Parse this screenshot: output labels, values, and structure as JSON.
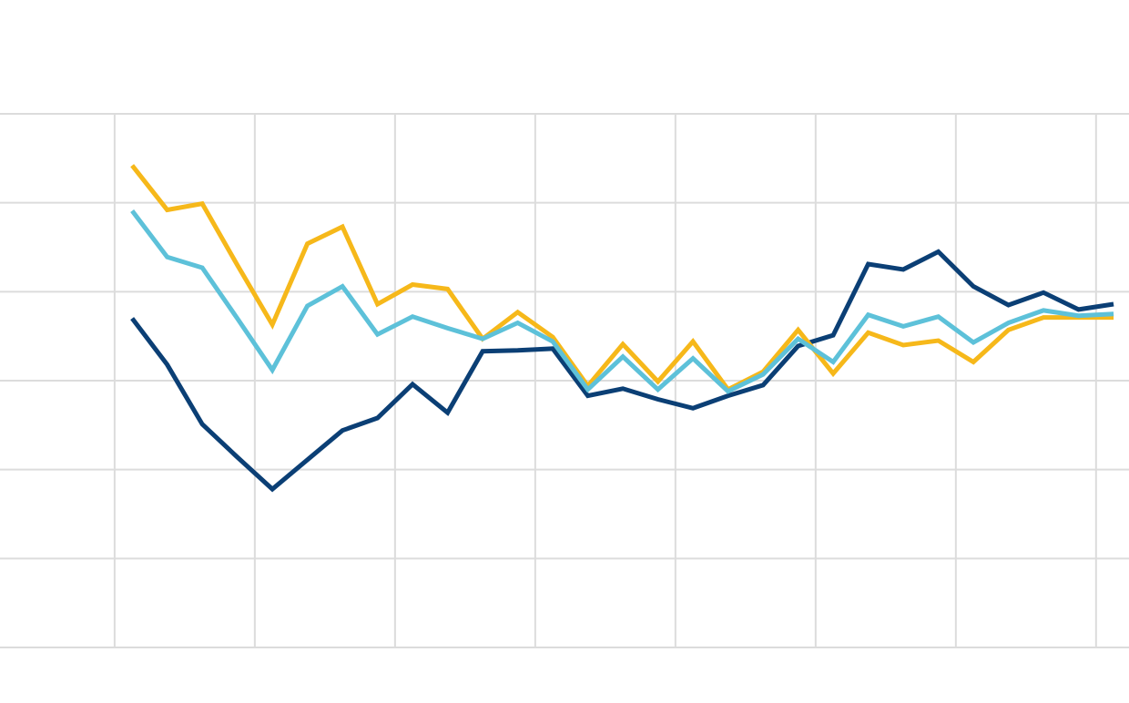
{
  "chart_data": {
    "type": "line",
    "x": [
      0.5,
      1.5,
      2.5,
      3.5,
      4.5,
      5.5,
      6.5,
      7.5,
      8.5,
      9.5,
      10.5,
      11.5,
      12.5,
      13.5,
      14.5,
      15.5,
      16.5,
      17.5,
      18.5,
      19.5,
      20.5,
      21.5,
      22.5,
      23.5,
      24.5,
      25.5,
      26.5,
      27.5,
      28.5
    ],
    "xlim": [
      -3.27,
      28.94
    ],
    "xticks": [
      0,
      4,
      8,
      12,
      16,
      20,
      24,
      28
    ],
    "ylim": [
      0,
      600
    ],
    "yticks": [
      0,
      100,
      200,
      300,
      400,
      500,
      600
    ],
    "grid": true,
    "series": [
      {
        "color": "#0b3f75",
        "values": [
          370,
          318,
          251,
          214,
          178,
          211,
          244,
          258,
          296,
          264,
          333,
          334,
          336,
          283,
          291,
          279,
          269,
          283,
          295,
          339,
          351,
          431,
          425,
          445,
          406,
          385,
          399,
          380,
          386
        ]
      },
      {
        "color": "#f6b81a",
        "values": [
          542,
          492,
          499,
          430,
          363,
          454,
          473,
          386,
          408,
          403,
          347,
          377,
          349,
          294,
          341,
          299,
          344,
          290,
          310,
          357,
          308,
          354,
          340,
          345,
          321,
          357,
          371,
          371,
          371
        ]
      },
      {
        "color": "#5dc1d9",
        "values": [
          491,
          439,
          427,
          370,
          312,
          384,
          406,
          352,
          372,
          359,
          347,
          365,
          344,
          290,
          327,
          290,
          325,
          288,
          307,
          347,
          321,
          374,
          361,
          372,
          343,
          365,
          379,
          373,
          375
        ]
      }
    ]
  }
}
